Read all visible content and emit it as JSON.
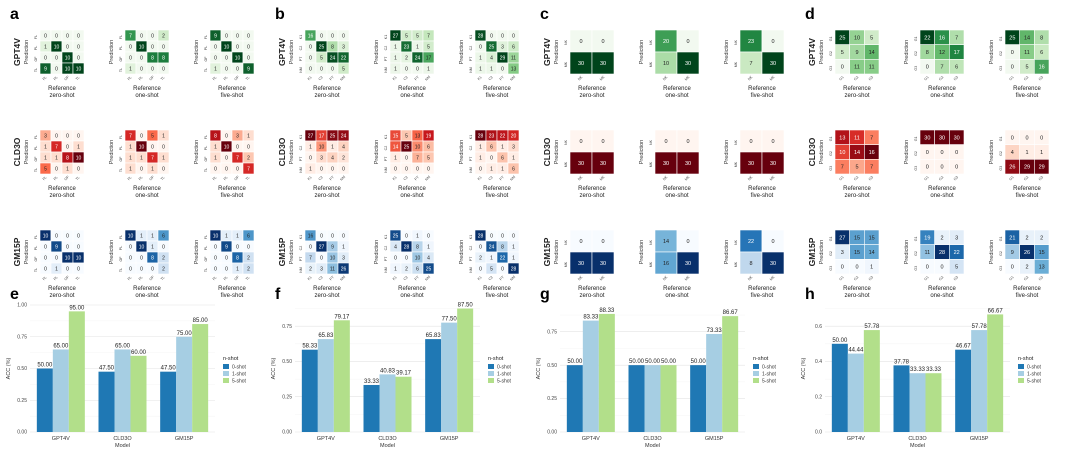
{
  "shot_labels": [
    "zero-shot",
    "one-shot",
    "five-shot"
  ],
  "axis_text": {
    "reference": "Reference",
    "prediction": "Prediction"
  },
  "colors": {
    "GPT4V": [
      "#f2f9f0",
      "#c7e8bf",
      "#74c476",
      "#238b45",
      "#00441b"
    ],
    "CLD3O": [
      "#fff5f0",
      "#fcbba1",
      "#fb6a4a",
      "#cb181d",
      "#67000d"
    ],
    "GM15P": [
      "#f7fbff",
      "#c6dbef",
      "#6baed6",
      "#2171b5",
      "#08306b"
    ],
    "bars": [
      "#1f78b4",
      "#a6cee3",
      "#b2df8a"
    ]
  },
  "heatmaps": [
    {
      "letter": "a",
      "ticks": [
        "FL",
        "PL",
        "OF",
        "TL"
      ],
      "rows": [
        {
          "model": "GPT4V",
          "matrices": [
            [
              [
                0,
                0,
                0,
                0
              ],
              [
                1,
                10,
                0,
                0
              ],
              [
                0,
                0,
                10,
                0
              ],
              [
                9,
                0,
                10,
                10
              ]
            ],
            [
              [
                7,
                0,
                0,
                2
              ],
              [
                0,
                10,
                0,
                0
              ],
              [
                0,
                0,
                8,
                8
              ],
              [
                1,
                0,
                0,
                0
              ]
            ],
            [
              [
                9,
                0,
                0,
                0
              ],
              [
                0,
                10,
                0,
                0
              ],
              [
                0,
                0,
                10,
                0
              ],
              [
                1,
                0,
                0,
                9
              ]
            ]
          ]
        },
        {
          "model": "CLD3O",
          "matrices": [
            [
              [
                3,
                0,
                0,
                0
              ],
              [
                1,
                7,
                0,
                1
              ],
              [
                1,
                1,
                8,
                10
              ],
              [
                5,
                0,
                1,
                0
              ]
            ],
            [
              [
                7,
                0,
                5,
                1
              ],
              [
                1,
                10,
                0,
                0
              ],
              [
                1,
                1,
                7,
                1
              ],
              [
                1,
                0,
                1,
                0
              ]
            ],
            [
              [
                8,
                0,
                3,
                1
              ],
              [
                1,
                10,
                0,
                0
              ],
              [
                1,
                0,
                7,
                2
              ],
              [
                0,
                0,
                0,
                7
              ]
            ]
          ]
        },
        {
          "model": "GM15P",
          "matrices": [
            [
              [
                10,
                0,
                0,
                0
              ],
              [
                0,
                9,
                0,
                0
              ],
              [
                0,
                0,
                10,
                10
              ],
              [
                0,
                1,
                0,
                0
              ]
            ],
            [
              [
                10,
                1,
                1,
                6
              ],
              [
                0,
                10,
                1,
                0
              ],
              [
                0,
                0,
                8,
                2
              ],
              [
                0,
                0,
                0,
                2
              ]
            ],
            [
              [
                10,
                1,
                1,
                6
              ],
              [
                0,
                9,
                0,
                0
              ],
              [
                0,
                0,
                8,
                2
              ],
              [
                0,
                0,
                1,
                2
              ]
            ]
          ]
        }
      ]
    },
    {
      "letter": "b",
      "ticks": [
        "K1",
        "C2",
        "PT",
        "NM"
      ],
      "rows": [
        {
          "model": "GPT4V",
          "matrices": [
            [
              [
                16,
                0,
                0,
                0
              ],
              [
                0,
                25,
                8,
                3
              ],
              [
                0,
                5,
                24,
                22
              ],
              [
                0,
                0,
                0,
                5
              ]
            ],
            [
              [
                27,
                5,
                5,
                7
              ],
              [
                1,
                23,
                1,
                5
              ],
              [
                1,
                2,
                24,
                17
              ],
              [
                1,
                0,
                0,
                1
              ]
            ],
            [
              [
                28,
                0,
                0,
                0
              ],
              [
                0,
                25,
                3,
                6
              ],
              [
                1,
                4,
                29,
                11
              ],
              [
                1,
                1,
                0,
                13
              ]
            ]
          ]
        },
        {
          "model": "CLD3O",
          "matrices": [
            [
              [
                27,
                17,
                25,
                24
              ],
              [
                1,
                10,
                1,
                4
              ],
              [
                0,
                3,
                4,
                2
              ],
              [
                1,
                0,
                0,
                0
              ]
            ],
            [
              [
                15,
                5,
                13,
                19
              ],
              [
                14,
                25,
                10,
                6
              ],
              [
                1,
                0,
                7,
                5
              ],
              [
                0,
                0,
                0,
                0
              ]
            ],
            [
              [
                28,
                23,
                22,
                20
              ],
              [
                1,
                6,
                1,
                3
              ],
              [
                1,
                0,
                6,
                1
              ],
              [
                0,
                1,
                1,
                6
              ]
            ]
          ]
        },
        {
          "model": "GM15P",
          "matrices": [
            [
              [
                16,
                0,
                0,
                0
              ],
              [
                0,
                27,
                9,
                1
              ],
              [
                7,
                0,
                10,
                3
              ],
              [
                2,
                3,
                11,
                26
              ]
            ],
            [
              [
                25,
                0,
                1,
                0
              ],
              [
                4,
                28,
                8,
                1
              ],
              [
                0,
                0,
                10,
                4
              ],
              [
                1,
                2,
                6,
                25
              ]
            ],
            [
              [
                28,
                0,
                0,
                0
              ],
              [
                0,
                24,
                8,
                1
              ],
              [
                2,
                1,
                22,
                1
              ],
              [
                0,
                5,
                0,
                28
              ]
            ]
          ]
        }
      ]
    },
    {
      "letter": "c",
      "ticks": [
        "NK",
        "MK"
      ],
      "rows": [
        {
          "model": "GPT4V",
          "matrices": [
            [
              [
                0,
                0
              ],
              [
                30,
                30
              ]
            ],
            [
              [
                20,
                0
              ],
              [
                10,
                30
              ]
            ],
            [
              [
                23,
                0
              ],
              [
                7,
                30
              ]
            ]
          ]
        },
        {
          "model": "CLD3O",
          "matrices": [
            [
              [
                0,
                0
              ],
              [
                30,
                30
              ]
            ],
            [
              [
                0,
                0
              ],
              [
                30,
                30
              ]
            ],
            [
              [
                0,
                0
              ],
              [
                30,
                30
              ]
            ]
          ]
        },
        {
          "model": "GM15P",
          "matrices": [
            [
              [
                0,
                0
              ],
              [
                30,
                30
              ]
            ],
            [
              [
                14,
                0
              ],
              [
                16,
                30
              ]
            ],
            [
              [
                22,
                0
              ],
              [
                8,
                30
              ]
            ]
          ]
        }
      ]
    },
    {
      "letter": "d",
      "ticks": [
        "G1",
        "G2",
        "G3"
      ],
      "rows": [
        {
          "model": "GPT4V",
          "matrices": [
            [
              [
                25,
                10,
                5
              ],
              [
                5,
                9,
                14
              ],
              [
                0,
                11,
                11
              ]
            ],
            [
              [
                22,
                16,
                7
              ],
              [
                8,
                12,
                17
              ],
              [
                0,
                7,
                6
              ]
            ],
            [
              [
                25,
                14,
                8
              ],
              [
                0,
                11,
                6
              ],
              [
                0,
                5,
                16
              ]
            ]
          ]
        },
        {
          "model": "CLD3O",
          "matrices": [
            [
              [
                13,
                11,
                7
              ],
              [
                10,
                14,
                16
              ],
              [
                7,
                5,
                7
              ]
            ],
            [
              [
                30,
                30,
                30
              ],
              [
                0,
                0,
                0
              ],
              [
                0,
                0,
                0
              ]
            ],
            [
              [
                0,
                0,
                0
              ],
              [
                4,
                1,
                1
              ],
              [
                26,
                29,
                29
              ]
            ]
          ]
        },
        {
          "model": "GM15P",
          "matrices": [
            [
              [
                27,
                15,
                15
              ],
              [
                3,
                15,
                14
              ],
              [
                0,
                0,
                1
              ]
            ],
            [
              [
                19,
                2,
                3
              ],
              [
                11,
                28,
                22
              ],
              [
                0,
                0,
                5
              ]
            ],
            [
              [
                21,
                2,
                2
              ],
              [
                9,
                26,
                15
              ],
              [
                0,
                2,
                13
              ]
            ]
          ]
        }
      ]
    }
  ],
  "chart_data": [
    {
      "letter": "e",
      "type": "bar",
      "categories": [
        "GPT4V",
        "CLD3O",
        "GM15P"
      ],
      "series": [
        {
          "name": "0-shot",
          "values": [
            50.0,
            47.5,
            47.5
          ]
        },
        {
          "name": "1-shot",
          "values": [
            65.0,
            65.0,
            75.0
          ]
        },
        {
          "name": "5-shot",
          "values": [
            95.0,
            60.0,
            85.0
          ]
        }
      ],
      "value_labels": [
        [
          "50.00",
          "47.50",
          "47.50"
        ],
        [
          "65.00",
          "65.00",
          "75.00"
        ],
        [
          "95.00",
          "60.00",
          "85.00"
        ]
      ],
      "ylim": [
        0,
        1.0
      ],
      "yticks": [
        "0.00",
        "0.25",
        "0.50",
        "0.75",
        "1.00"
      ],
      "ylabel": "ACC (%)",
      "xlabel": "Model",
      "legend_title": "n-shot",
      "legend": [
        "0-shot",
        "1-shot",
        "5-shot"
      ]
    },
    {
      "letter": "f",
      "type": "bar",
      "categories": [
        "GPT4V",
        "CLD3O",
        "GM15P"
      ],
      "series": [
        {
          "name": "0-shot",
          "values": [
            58.33,
            33.33,
            65.83
          ]
        },
        {
          "name": "1-shot",
          "values": [
            65.83,
            40.83,
            77.5
          ]
        },
        {
          "name": "5-shot",
          "values": [
            79.17,
            39.17,
            87.5
          ]
        }
      ],
      "value_labels": [
        [
          "58.33",
          "33.33",
          "65.83"
        ],
        [
          "65.83",
          "40.83",
          "77.50"
        ],
        [
          "79.17",
          "39.17",
          "87.50"
        ]
      ],
      "ylim": [
        0,
        0.9
      ],
      "yticks": [
        "0.00",
        "0.25",
        "0.50",
        "0.75"
      ],
      "ylabel": "ACC (%)",
      "xlabel": "Model",
      "legend_title": "n-shot",
      "legend": [
        "0-shot",
        "1-shot",
        "5-shot"
      ]
    },
    {
      "letter": "g",
      "type": "bar",
      "categories": [
        "GPT4V",
        "CLD3O",
        "GM15P"
      ],
      "series": [
        {
          "name": "0-shot",
          "values": [
            50.0,
            50.0,
            50.0
          ]
        },
        {
          "name": "1-shot",
          "values": [
            83.33,
            50.0,
            73.33
          ]
        },
        {
          "name": "5-shot",
          "values": [
            88.33,
            50.0,
            86.67
          ]
        }
      ],
      "value_labels": [
        [
          "50.00",
          "50.00",
          "50.00"
        ],
        [
          "83.33",
          "50.00",
          "73.33"
        ],
        [
          "88.33",
          "50.00",
          "86.67"
        ]
      ],
      "ylim": [
        0,
        0.95
      ],
      "yticks": [
        "0.00",
        "0.25",
        "0.50",
        "0.75"
      ],
      "ylabel": "ACC (%)",
      "xlabel": "Model",
      "legend_title": "n-shot",
      "legend": [
        "0-shot",
        "1-shot",
        "5-shot"
      ]
    },
    {
      "letter": "h",
      "type": "bar",
      "categories": [
        "GPT4V",
        "CLD3O",
        "GM15P"
      ],
      "series": [
        {
          "name": "0-shot",
          "values": [
            50.0,
            37.78,
            46.67
          ]
        },
        {
          "name": "1-shot",
          "values": [
            44.44,
            33.33,
            57.78
          ]
        },
        {
          "name": "5-shot",
          "values": [
            57.78,
            33.33,
            66.67
          ]
        }
      ],
      "value_labels": [
        [
          "50.00",
          "37.78",
          "46.67"
        ],
        [
          "44.44",
          "33.33",
          "57.78"
        ],
        [
          "57.78",
          "33.33",
          "66.67"
        ]
      ],
      "ylim": [
        0,
        0.72
      ],
      "yticks": [
        "0.0",
        "0.2",
        "0.4",
        "0.6"
      ],
      "ylabel": "ACC (%)",
      "xlabel": "Model",
      "legend_title": "n-shot",
      "legend": [
        "0-shot",
        "1-shot",
        "5-shot"
      ]
    }
  ]
}
